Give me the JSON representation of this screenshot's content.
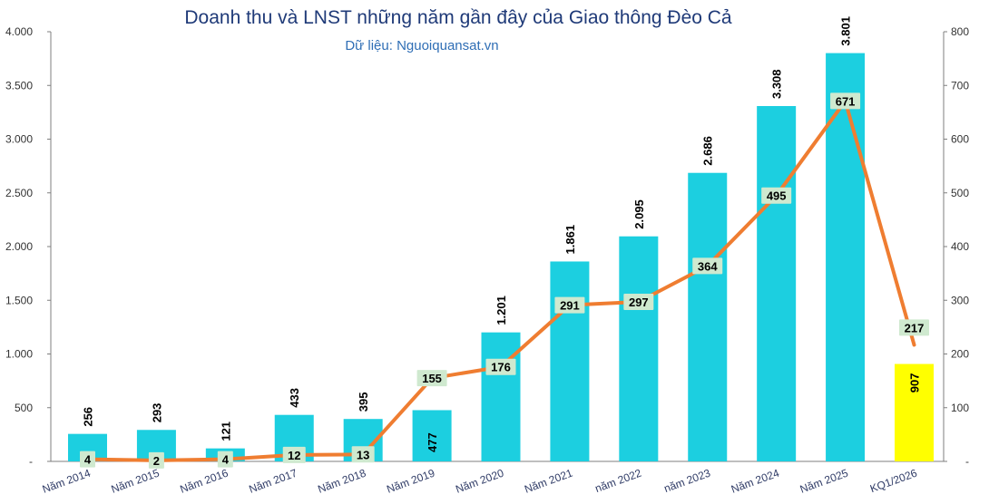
{
  "chart_data": {
    "type": "bar",
    "title": "Doanh thu và LNST những năm gần đây của Giao thông Đèo Cả",
    "subtitle": "Dữ liệu: Nguoiquansat.vn",
    "categories": [
      "Năm 2014",
      "Năm 2015",
      "Năm 2016",
      "Năm 2017",
      "Năm 2018",
      "Năm 2019",
      "Năm 2020",
      "Năm 2021",
      "năm 2022",
      "năm 2023",
      "Năm 2024",
      "Năm 2025",
      "KQ1/2026"
    ],
    "series": [
      {
        "type": "bar",
        "axis": "left",
        "values": [
          256,
          293,
          121,
          433,
          395,
          477,
          1201,
          1861,
          2095,
          2686,
          3308,
          3801,
          907
        ],
        "labels": [
          "256",
          "293",
          "121",
          "433",
          "395",
          "477",
          "1.201",
          "1.861",
          "2.095",
          "2.686",
          "3.308",
          "3.801",
          "907"
        ],
        "color": "#1ccfe0",
        "highlight": {
          "index": 12,
          "color": "#ffff00"
        }
      },
      {
        "type": "line",
        "axis": "right",
        "values": [
          4,
          2,
          4,
          12,
          13,
          155,
          176,
          291,
          297,
          364,
          495,
          671,
          217
        ],
        "labels": [
          "4",
          "2",
          "4",
          "12",
          "13",
          "155",
          "176",
          "291",
          "297",
          "364",
          "495",
          "671",
          "217"
        ],
        "color": "#ef7d31"
      }
    ],
    "y_left": {
      "min": 0,
      "max": 4000,
      "ticks": [
        "-",
        "500",
        "1.000",
        "1.500",
        "2.000",
        "2.500",
        "3.000",
        "3.500",
        "4.000"
      ]
    },
    "y_right": {
      "min": 0,
      "max": 800,
      "ticks": [
        "-",
        "100",
        "200",
        "300",
        "400",
        "500",
        "600",
        "700",
        "800"
      ]
    },
    "grid": false,
    "legend": "none"
  }
}
